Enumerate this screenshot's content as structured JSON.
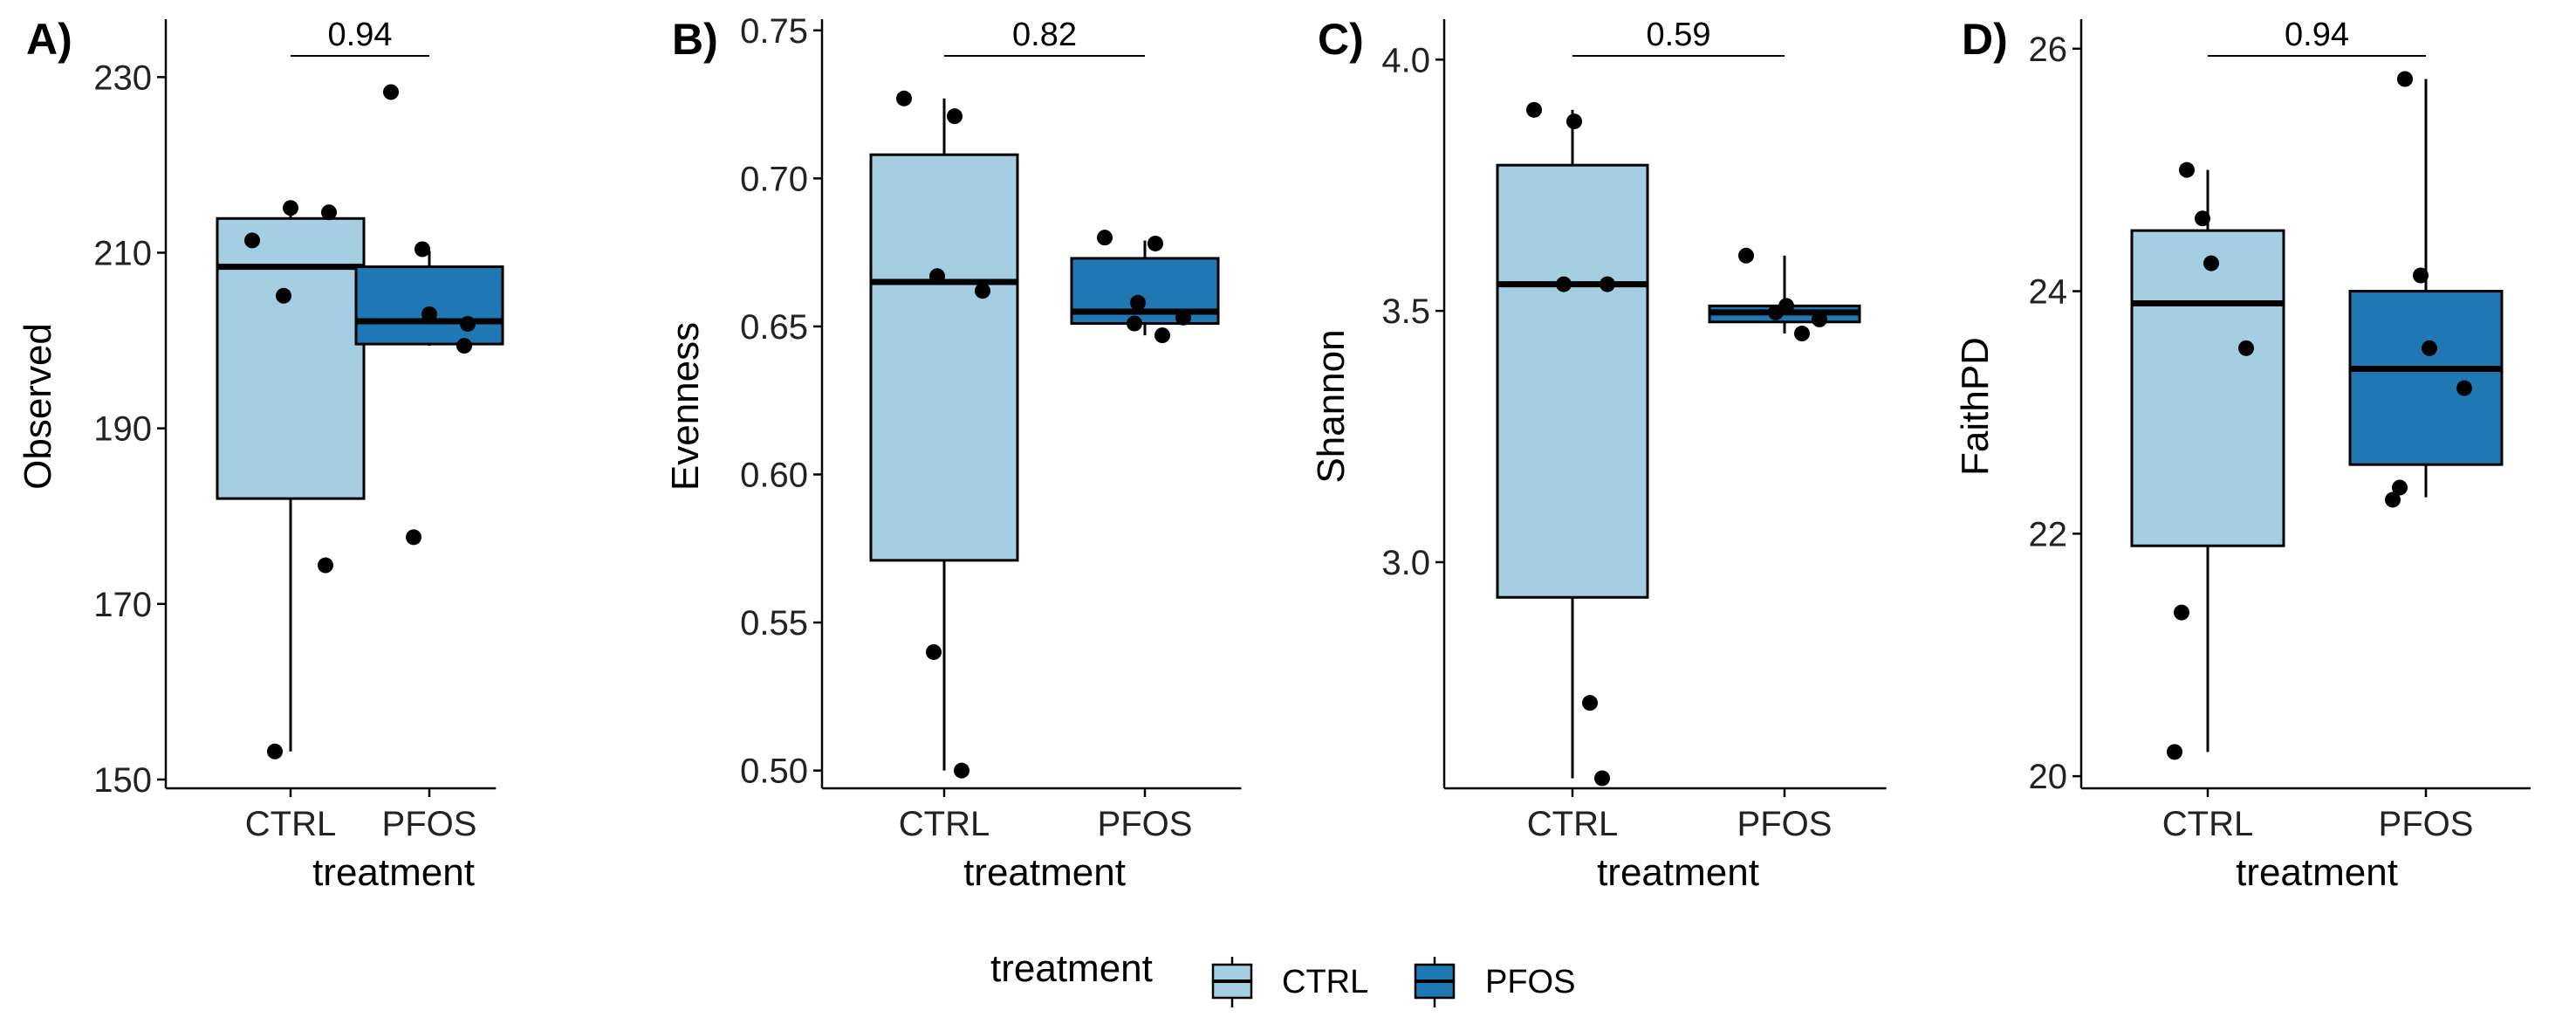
{
  "chart_data": [
    {
      "type": "boxplot",
      "tag": "A)",
      "xlabel": "treatment",
      "ylabel": "Observed",
      "ylim": [
        149,
        236
      ],
      "yticks": [
        150,
        170,
        190,
        210,
        230
      ],
      "categories": [
        "CTRL",
        "PFOS"
      ],
      "pvalue": "0.94",
      "boxes": [
        {
          "group": "CTRL",
          "whisker_low": 153.2,
          "q1": 182,
          "median": 208.4,
          "q3": 213.9,
          "whisker_high": 215
        },
        {
          "group": "PFOS",
          "whisker_low": 199.4,
          "q1": 199.6,
          "median": 202.2,
          "q3": 208.4,
          "whisker_high": 210.2
        }
      ],
      "points": [
        {
          "group": "CTRL",
          "y": [
            211.4,
            205.1,
            215.1,
            214.6,
            174.4,
            153.2
          ]
        },
        {
          "group": "PFOS",
          "y": [
            228.3,
            210.4,
            203,
            201.9,
            199.4,
            177.6
          ]
        }
      ]
    },
    {
      "type": "boxplot",
      "tag": "B)",
      "xlabel": "treatment",
      "ylabel": "Evenness",
      "ylim": [
        0.494,
        0.752
      ],
      "yticks": [
        0.5,
        0.55,
        0.6,
        0.65,
        0.7,
        0.75
      ],
      "ytick_labels": [
        "0.50",
        "0.55",
        "0.60",
        "0.65",
        "0.70",
        "0.75"
      ],
      "categories": [
        "CTRL",
        "PFOS"
      ],
      "pvalue": "0.82",
      "boxes": [
        {
          "group": "CTRL",
          "whisker_low": 0.5,
          "q1": 0.571,
          "median": 0.665,
          "q3": 0.708,
          "whisker_high": 0.727
        },
        {
          "group": "PFOS",
          "whisker_low": 0.647,
          "q1": 0.651,
          "median": 0.655,
          "q3": 0.673,
          "whisker_high": 0.679
        }
      ],
      "points": [
        {
          "group": "CTRL",
          "y": [
            0.727,
            0.721,
            0.667,
            0.662,
            0.54,
            0.5
          ]
        },
        {
          "group": "PFOS",
          "y": [
            0.68,
            0.678,
            0.658,
            0.653,
            0.651,
            0.647
          ]
        }
      ]
    },
    {
      "type": "boxplot",
      "tag": "C)",
      "xlabel": "treatment",
      "ylabel": "Shannon",
      "ylim": [
        2.55,
        4.07
      ],
      "yticks": [
        3.0,
        3.5,
        4.0
      ],
      "ytick_labels": [
        "3.0",
        "3.5",
        "4.0"
      ],
      "categories": [
        "CTRL",
        "PFOS"
      ],
      "pvalue": "0.59",
      "boxes": [
        {
          "group": "CTRL",
          "whisker_low": 2.57,
          "q1": 2.93,
          "median": 3.553,
          "q3": 3.79,
          "whisker_high": 3.9
        },
        {
          "group": "PFOS",
          "whisker_low": 3.455,
          "q1": 3.478,
          "median": 3.497,
          "q3": 3.51,
          "whisker_high": 3.61
        }
      ],
      "points": [
        {
          "group": "CTRL",
          "y": [
            3.9,
            3.877,
            3.553,
            3.553,
            2.72,
            2.57
          ]
        },
        {
          "group": "PFOS",
          "y": [
            3.61,
            3.51,
            3.497,
            3.483,
            3.455
          ]
        }
      ]
    },
    {
      "type": "boxplot",
      "tag": "D)",
      "xlabel": "treatment",
      "ylabel": "FaithPD",
      "ylim": [
        19.9,
        26.2
      ],
      "yticks": [
        20,
        22,
        24,
        26
      ],
      "categories": [
        "CTRL",
        "PFOS"
      ],
      "pvalue": "0.94",
      "boxes": [
        {
          "group": "CTRL",
          "whisker_low": 20.2,
          "q1": 21.9,
          "median": 23.9,
          "q3": 24.5,
          "whisker_high": 25
        },
        {
          "group": "PFOS",
          "whisker_low": 22.3,
          "q1": 22.57,
          "median": 23.36,
          "q3": 24,
          "whisker_high": 25.75
        }
      ],
      "points": [
        {
          "group": "CTRL",
          "y": [
            25,
            24.6,
            24.23,
            23.53,
            21.35,
            20.2
          ]
        },
        {
          "group": "PFOS",
          "y": [
            25.75,
            24.13,
            23.53,
            23.2,
            22.38,
            22.28
          ]
        }
      ]
    }
  ],
  "legend": {
    "title": "treatment",
    "items": [
      {
        "label": "CTRL",
        "color": "#A6CEE3"
      },
      {
        "label": "PFOS",
        "color": "#1F78B4"
      }
    ]
  },
  "colors": {
    "CTRL": "#A6CEE3",
    "PFOS": "#1F78B4"
  }
}
